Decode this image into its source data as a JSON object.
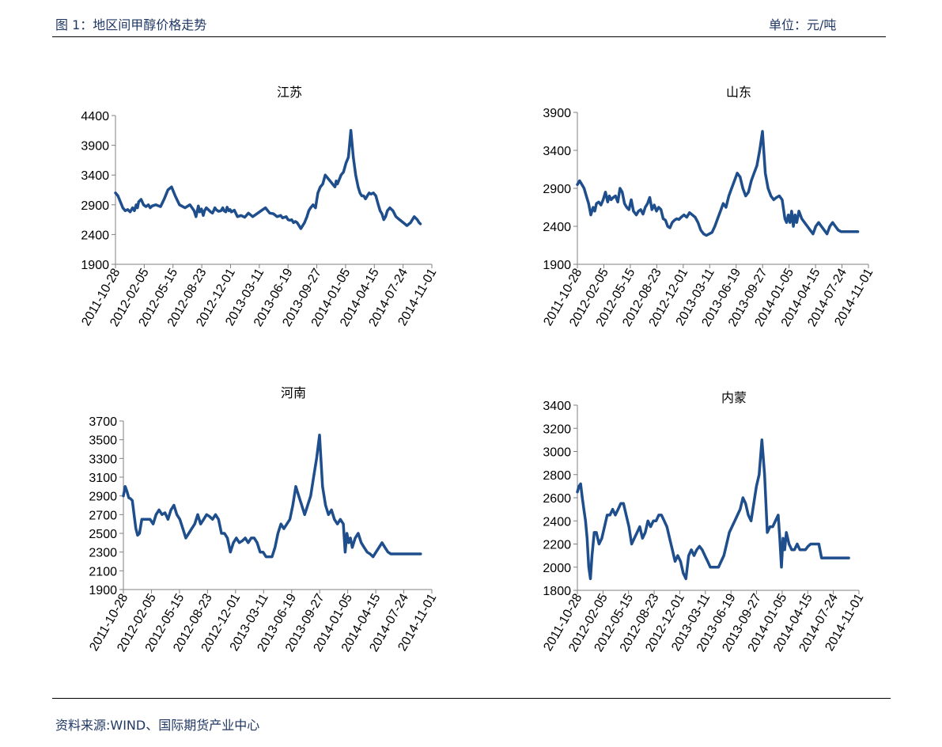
{
  "header": {
    "title": "图 1：地区间甲醇价格走势",
    "unit": "单位：元/吨"
  },
  "footer": {
    "source": "资料来源:WIND、国际期货产业中心"
  },
  "chart_data": [
    {
      "type": "line",
      "title": "江苏",
      "x_ticks": [
        "2011-10-28",
        "2012-02-05",
        "2012-05-15",
        "2012-08-23",
        "2012-12-01",
        "2013-03-11",
        "2013-06-19",
        "2013-09-27",
        "2014-01-05",
        "2014-04-15",
        "2014-07-24",
        "2014-11-01"
      ],
      "ylim": [
        1900,
        4400
      ],
      "y_ticks": [
        1900,
        2400,
        2900,
        3400,
        3900,
        4400
      ],
      "series": [
        {
          "x": [
            0,
            8,
            16,
            24,
            32,
            40,
            48,
            56,
            62,
            68,
            72,
            76,
            84,
            92,
            100,
            108,
            114,
            120,
            132,
            148,
            160,
            172,
            184,
            196,
            210,
            228,
            244,
            258,
            264,
            272,
            276,
            282,
            288,
            292,
            298,
            304,
            312,
            318,
            322,
            326,
            330,
            338,
            346,
            352,
            356,
            362,
            366,
            372,
            376,
            380,
            390,
            400,
            412,
            424,
            436,
            450,
            464,
            478,
            492,
            506,
            518,
            530,
            542,
            548,
            560,
            566,
            572,
            578,
            584,
            590,
            596,
            602,
            608,
            614,
            620,
            628,
            634,
            640,
            648,
            656,
            664,
            672,
            680,
            688,
            696,
            704,
            712,
            720,
            724,
            728,
            732,
            736,
            740,
            748,
            756,
            764,
            772,
            780,
            788,
            796,
            802,
            808,
            814,
            820,
            826,
            832,
            838,
            846,
            854,
            862,
            868,
            874,
            880,
            886,
            892,
            900,
            910,
            920,
            932,
            944,
            956,
            968,
            980,
            990,
            996,
            1000
          ],
          "values": [
            3100,
            3050,
            2950,
            2850,
            2800,
            2820,
            2780,
            2850,
            2800,
            2900,
            2850,
            2950,
            2990,
            2900,
            2870,
            2900,
            2850,
            2880,
            2900,
            2870,
            3000,
            3150,
            3200,
            3050,
            2900,
            2850,
            2900,
            2800,
            2700,
            2880,
            2780,
            2830,
            2720,
            2800,
            2850,
            2820,
            2780,
            2760,
            2800,
            2850,
            2820,
            2790,
            2800,
            2850,
            2800,
            2780,
            2860,
            2800,
            2820,
            2780,
            2810,
            2700,
            2720,
            2690,
            2760,
            2700,
            2750,
            2800,
            2850,
            2760,
            2750,
            2700,
            2720,
            2680,
            2700,
            2650,
            2640,
            2650,
            2600,
            2620,
            2600,
            2550,
            2500,
            2550,
            2600,
            2700,
            2800,
            2850,
            2900,
            2850,
            3100,
            3200,
            3250,
            3400,
            3350,
            3300,
            3250,
            3200,
            3300,
            3250,
            3300,
            3350,
            3400,
            3450,
            3600,
            3700,
            4150,
            3700,
            3400,
            3200,
            3100,
            3050,
            3050,
            3000,
            3050,
            3100,
            3080,
            3100,
            3050,
            2900,
            2800,
            2750,
            2650,
            2700,
            2800,
            2850,
            2800,
            2700,
            2650,
            2600,
            2550,
            2600,
            2700,
            2650,
            2600,
            2580
          ]
        }
      ]
    },
    {
      "type": "line",
      "title": "山东",
      "x_ticks": [
        "2011-10-28",
        "2012-02-05",
        "2012-05-15",
        "2012-08-23",
        "2012-12-01",
        "2013-03-11",
        "2013-06-19",
        "2013-09-27",
        "2014-01-05",
        "2014-04-15",
        "2014-07-24",
        "2014-11-01"
      ],
      "ylim": [
        1900,
        3900
      ],
      "y_ticks": [
        1900,
        2400,
        2900,
        3400,
        3900
      ],
      "series": [
        {
          "x": [
            0,
            8,
            16,
            24,
            32,
            40,
            48,
            56,
            62,
            68,
            76,
            84,
            92,
            100,
            108,
            114,
            120,
            128,
            136,
            144,
            152,
            160,
            168,
            176,
            184,
            192,
            200,
            210,
            218,
            226,
            234,
            242,
            250,
            258,
            266,
            274,
            282,
            290,
            298,
            306,
            314,
            322,
            330,
            338,
            346,
            354,
            362,
            370,
            380,
            390,
            400,
            410,
            420,
            430,
            440,
            450,
            460,
            470,
            480,
            490,
            500,
            510,
            520,
            530,
            540,
            550,
            560,
            570,
            580,
            590,
            600,
            610,
            620,
            630,
            640,
            650,
            660,
            670,
            680,
            690,
            700,
            710,
            720,
            730,
            740,
            746,
            752,
            758,
            764,
            770,
            776,
            782,
            790,
            800,
            810,
            820,
            830,
            840,
            850,
            860,
            870,
            880,
            890,
            900,
            910,
            920,
            930,
            940,
            950,
            960,
            970,
            980,
            990,
            996,
            1000
          ],
          "values": [
            2950,
            3000,
            2950,
            2900,
            2800,
            2700,
            2550,
            2650,
            2600,
            2700,
            2720,
            2680,
            2750,
            2850,
            2720,
            2800,
            2750,
            2780,
            2800,
            2720,
            2900,
            2850,
            2700,
            2650,
            2620,
            2750,
            2600,
            2550,
            2600,
            2620,
            2560,
            2650,
            2700,
            2780,
            2620,
            2680,
            2600,
            2650,
            2620,
            2500,
            2480,
            2400,
            2380,
            2450,
            2480,
            2500,
            2490,
            2520,
            2550,
            2520,
            2580,
            2550,
            2520,
            2450,
            2350,
            2300,
            2280,
            2300,
            2320,
            2400,
            2500,
            2600,
            2700,
            2650,
            2800,
            2900,
            3000,
            3100,
            3050,
            2900,
            2800,
            2850,
            3000,
            3100,
            3200,
            3400,
            3650,
            3100,
            2900,
            2800,
            2750,
            2780,
            2800,
            2750,
            2500,
            2450,
            2550,
            2450,
            2600,
            2400,
            2550,
            2450,
            2600,
            2500,
            2450,
            2400,
            2350,
            2300,
            2400,
            2450,
            2400,
            2350,
            2300,
            2400,
            2450,
            2400,
            2350,
            2330,
            2330,
            2330,
            2330,
            2330,
            2330,
            2330,
            2330
          ]
        }
      ]
    },
    {
      "type": "line",
      "title": "河南",
      "x_ticks": [
        "2011-10-28",
        "2012-02-05",
        "2012-05-15",
        "2012-08-23",
        "2012-12-01",
        "2013-03-11",
        "2013-06-19",
        "2013-09-27",
        "2014-01-05",
        "2014-04-15",
        "2014-07-24",
        "2014-11-01"
      ],
      "ylim": [
        1900,
        3700
      ],
      "y_ticks": [
        1900,
        2100,
        2300,
        2500,
        2700,
        2900,
        3100,
        3300,
        3500,
        3700
      ],
      "series": [
        {
          "x": [
            0,
            6,
            12,
            18,
            24,
            30,
            36,
            42,
            48,
            54,
            62,
            70,
            80,
            90,
            100,
            110,
            120,
            130,
            140,
            150,
            160,
            170,
            180,
            190,
            200,
            210,
            220,
            230,
            240,
            250,
            260,
            270,
            280,
            290,
            300,
            310,
            320,
            330,
            340,
            350,
            360,
            370,
            380,
            390,
            400,
            410,
            420,
            430,
            440,
            450,
            460,
            470,
            480,
            490,
            500,
            510,
            520,
            530,
            540,
            550,
            560,
            570,
            580,
            590,
            600,
            610,
            620,
            630,
            640,
            650,
            660,
            670,
            680,
            690,
            700,
            710,
            720,
            730,
            740,
            746,
            752,
            758,
            764,
            770,
            780,
            790,
            800,
            810,
            820,
            830,
            840,
            850,
            860,
            870,
            880,
            890,
            900,
            910,
            920,
            930,
            940,
            950,
            960,
            970,
            980,
            990,
            1000
          ],
          "values": [
            2900,
            3000,
            2950,
            2880,
            2870,
            2850,
            2700,
            2550,
            2480,
            2500,
            2650,
            2650,
            2650,
            2650,
            2600,
            2700,
            2750,
            2700,
            2720,
            2650,
            2750,
            2800,
            2700,
            2650,
            2550,
            2450,
            2500,
            2550,
            2600,
            2700,
            2600,
            2650,
            2700,
            2680,
            2650,
            2700,
            2650,
            2500,
            2500,
            2450,
            2300,
            2400,
            2450,
            2400,
            2420,
            2450,
            2400,
            2450,
            2450,
            2400,
            2300,
            2300,
            2250,
            2250,
            2250,
            2350,
            2500,
            2600,
            2550,
            2600,
            2650,
            2800,
            3000,
            2900,
            2800,
            2700,
            2800,
            2900,
            3100,
            3300,
            3550,
            3000,
            2800,
            2700,
            2750,
            2650,
            2600,
            2650,
            2600,
            2300,
            2500,
            2400,
            2450,
            2350,
            2450,
            2500,
            2400,
            2350,
            2300,
            2280,
            2250,
            2300,
            2350,
            2400,
            2350,
            2300,
            2280,
            2280,
            2280,
            2280,
            2280,
            2280,
            2280,
            2280,
            2280,
            2280,
            2280
          ]
        }
      ]
    },
    {
      "type": "line",
      "title": "内蒙",
      "x_ticks": [
        "2011-10-28",
        "2012-02-05",
        "2012-05-15",
        "2012-08-23",
        "2012-12-01",
        "2013-03-11",
        "2013-06-19",
        "2013-09-27",
        "2014-01-05",
        "2014-04-15",
        "2014-07-24",
        "2014-11-01"
      ],
      "ylim": [
        1800,
        3400
      ],
      "y_ticks": [
        1800,
        2000,
        2200,
        2400,
        2600,
        2800,
        3000,
        3200,
        3400
      ],
      "series": [
        {
          "x": [
            0,
            6,
            12,
            18,
            24,
            30,
            36,
            42,
            48,
            54,
            62,
            70,
            80,
            90,
            100,
            110,
            120,
            130,
            140,
            150,
            160,
            170,
            180,
            190,
            200,
            210,
            220,
            230,
            240,
            250,
            260,
            270,
            280,
            290,
            300,
            310,
            320,
            330,
            340,
            350,
            360,
            370,
            380,
            390,
            400,
            410,
            420,
            430,
            440,
            450,
            460,
            470,
            480,
            490,
            500,
            510,
            520,
            530,
            540,
            550,
            560,
            570,
            580,
            590,
            600,
            610,
            620,
            630,
            640,
            650,
            660,
            670,
            680,
            690,
            700,
            710,
            720,
            730,
            740,
            746,
            752,
            758,
            764,
            770,
            780,
            790,
            800,
            810,
            820,
            830,
            840,
            850,
            860,
            870,
            880,
            890,
            900,
            910,
            920,
            930,
            940,
            950,
            960,
            970,
            980,
            990,
            1000
          ],
          "values": [
            2650,
            2700,
            2720,
            2600,
            2500,
            2400,
            2250,
            2000,
            1900,
            2100,
            2300,
            2300,
            2200,
            2250,
            2350,
            2450,
            2450,
            2500,
            2450,
            2500,
            2550,
            2550,
            2450,
            2350,
            2200,
            2250,
            2300,
            2350,
            2250,
            2300,
            2400,
            2350,
            2400,
            2400,
            2450,
            2450,
            2400,
            2350,
            2250,
            2150,
            2050,
            2100,
            2050,
            1950,
            1900,
            2100,
            2150,
            2100,
            2150,
            2180,
            2150,
            2100,
            2050,
            2000,
            2000,
            2000,
            2000,
            2050,
            2100,
            2200,
            2300,
            2350,
            2400,
            2450,
            2500,
            2600,
            2550,
            2450,
            2400,
            2550,
            2700,
            2800,
            3100,
            2800,
            2300,
            2350,
            2350,
            2400,
            2450,
            2250,
            2000,
            2250,
            2150,
            2300,
            2200,
            2150,
            2150,
            2200,
            2150,
            2150,
            2150,
            2180,
            2200,
            2200,
            2200,
            2200,
            2080,
            2080,
            2080,
            2080,
            2080,
            2080,
            2080,
            2080,
            2080,
            2080,
            2080
          ]
        }
      ]
    }
  ]
}
